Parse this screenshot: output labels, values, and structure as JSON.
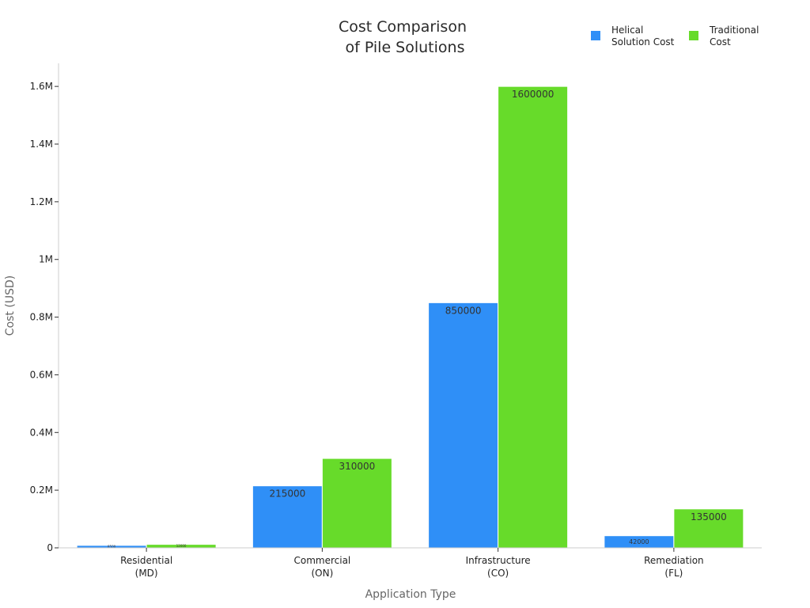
{
  "chart_data": {
    "type": "bar",
    "title": [
      "Cost Comparison",
      "of Pile Solutions"
    ],
    "xlabel": "Application Type",
    "ylabel": "Cost (USD)",
    "categories": [
      [
        "Residential",
        "(MD)"
      ],
      [
        "Commercial",
        "(ON)"
      ],
      [
        "Infrastructure",
        "(CO)"
      ],
      [
        "Remediation",
        "(FL)"
      ]
    ],
    "series": [
      {
        "name": [
          "Helical",
          "Solution Cost"
        ],
        "color": "#2f8ff7",
        "values": [
          8500,
          215000,
          850000,
          42000
        ],
        "labels": [
          "8500",
          "215000",
          "850000",
          "42000"
        ]
      },
      {
        "name": [
          "Traditional",
          "Cost"
        ],
        "color": "#67db2a",
        "values": [
          12000,
          310000,
          1600000,
          135000
        ],
        "labels": [
          "12000",
          "310000",
          "1600000",
          "135000"
        ]
      }
    ],
    "ylim": [
      0,
      1680000
    ],
    "yticks": [
      0,
      200000,
      400000,
      600000,
      800000,
      1000000,
      1200000,
      1400000,
      1600000
    ],
    "ytick_labels": [
      "0",
      "0.2M",
      "0.4M",
      "0.6M",
      "0.8M",
      "1M",
      "1.2M",
      "1.4M",
      "1.6M"
    ],
    "legend_position": "top-right",
    "grid": false
  }
}
